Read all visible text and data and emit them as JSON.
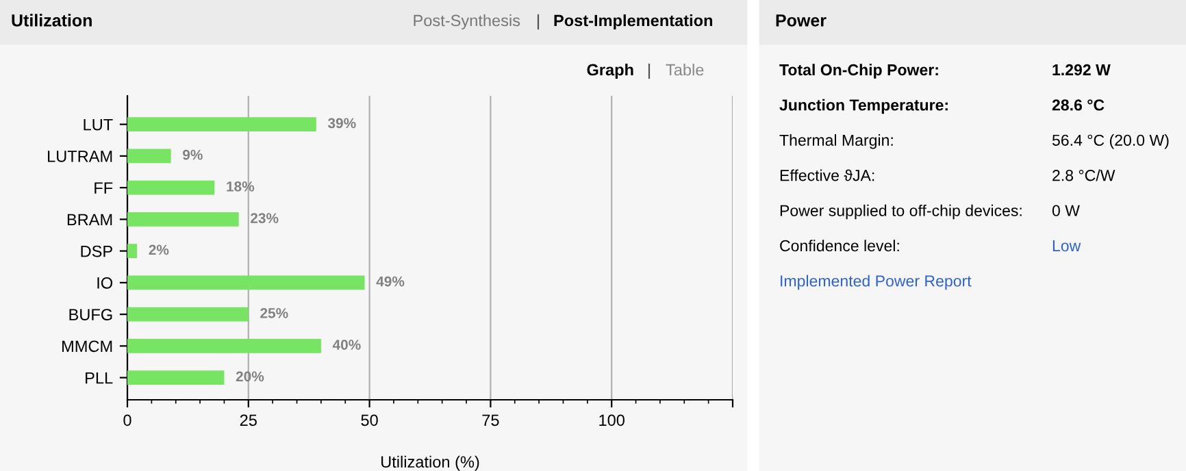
{
  "chart_data": [
    {
      "type": "bar",
      "orientation": "horizontal",
      "title": "Utilization",
      "xlabel": "Utilization (%)",
      "annotations": [
        "Post-Synthesis",
        "Post-Implementation",
        "Graph",
        "Table"
      ],
      "categories": [
        "LUT",
        "LUTRAM",
        "FF",
        "BRAM",
        "DSP",
        "IO",
        "BUFG",
        "MMCM",
        "PLL"
      ],
      "values": [
        39,
        9,
        18,
        23,
        2,
        49,
        25,
        40,
        20
      ],
      "value_labels": [
        "39%",
        "9%",
        "18%",
        "23%",
        "2%",
        "49%",
        "25%",
        "40%",
        "20%"
      ],
      "color": "#77e463",
      "xlim": [
        0,
        125
      ],
      "xticks": [
        0,
        25,
        50,
        75,
        100,
        {
          "value": 125,
          "label": null
        }
      ],
      "grid": "x"
    },
    {
      "type": "other",
      "title": "Power",
      "annotations": [
        "Total On-Chip Power:",
        "1.292 W",
        "Junction Temperature:",
        "28.6 °C",
        "Thermal Margin:",
        "56.4 °C (20.0 W)",
        "Effective ϑJA:",
        "2.8 °C/W",
        "Power supplied to off-chip devices:",
        "0 W",
        "Confidence level:",
        "Low",
        "Implemented Power Report"
      ]
    }
  ]
}
